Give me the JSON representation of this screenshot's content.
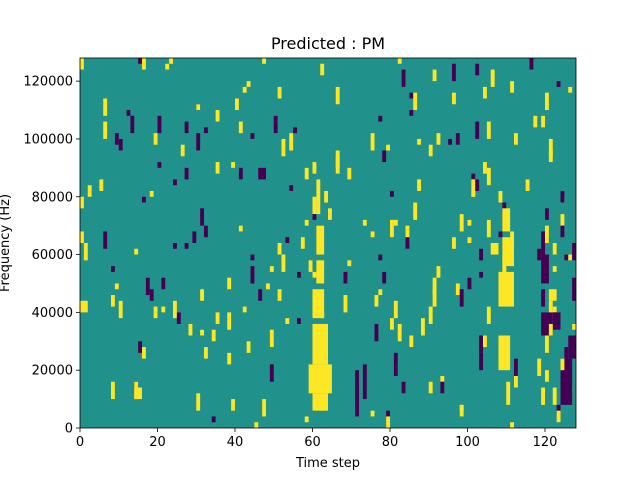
{
  "chart_data": {
    "type": "heatmap",
    "title": "Predicted : PM",
    "xlabel": "Time step",
    "ylabel": "Frequency (Hz)",
    "xlim": [
      0,
      128
    ],
    "ylim": [
      0,
      128000
    ],
    "xticks": [
      0,
      20,
      40,
      60,
      80,
      100,
      120
    ],
    "yticks": [
      0,
      20000,
      40000,
      60000,
      80000,
      100000,
      120000
    ],
    "grid": false,
    "legend": "none",
    "bins": {
      "time": 128,
      "frequency": 64
    },
    "colors": {
      "background": "#21918c",
      "high": "#fde725",
      "low": "#440154"
    },
    "high_events": [
      {
        "t": 59,
        "f": 12000,
        "len_t": 6,
        "len_f": 10000
      },
      {
        "t": 60,
        "f": 6000,
        "len_t": 4,
        "len_f": 6000
      },
      {
        "t": 60,
        "f": 22000,
        "len_t": 4,
        "len_f": 14000
      },
      {
        "t": 60,
        "f": 38000,
        "len_t": 3,
        "len_f": 10000
      },
      {
        "t": 61,
        "f": 50000,
        "len_t": 2,
        "len_f": 8000
      },
      {
        "t": 61,
        "f": 60000,
        "len_t": 2,
        "len_f": 10000
      },
      {
        "t": 61,
        "f": 74000,
        "len_t": 1,
        "len_f": 12000
      },
      {
        "t": 58,
        "f": 86000,
        "len_t": 1,
        "len_f": 4000
      },
      {
        "t": 63,
        "f": 78000,
        "len_t": 1,
        "len_f": 4000
      },
      {
        "t": 60,
        "f": 88000,
        "len_t": 1,
        "len_f": 4000
      },
      {
        "t": 108,
        "f": 20000,
        "len_t": 3,
        "len_f": 12000
      },
      {
        "t": 108,
        "f": 42000,
        "len_t": 4,
        "len_f": 12000
      },
      {
        "t": 109,
        "f": 56000,
        "len_t": 3,
        "len_f": 10000
      },
      {
        "t": 109,
        "f": 68000,
        "len_t": 2,
        "len_f": 8000
      },
      {
        "t": 106,
        "f": 60000,
        "len_t": 2,
        "len_f": 4000
      },
      {
        "t": 110,
        "f": 8000,
        "len_t": 1,
        "len_f": 8000
      },
      {
        "t": 105,
        "f": 36000,
        "len_t": 1,
        "len_f": 6000
      },
      {
        "t": 104,
        "f": 28000,
        "len_t": 1,
        "len_f": 4000
      },
      {
        "t": 28,
        "f": 32000,
        "len_t": 1,
        "len_f": 4000
      },
      {
        "t": 14,
        "f": 10000,
        "len_t": 2,
        "len_f": 4000
      },
      {
        "t": 0,
        "f": 40000,
        "len_t": 2,
        "len_f": 4000
      },
      {
        "t": 124,
        "f": 20000,
        "len_t": 1,
        "len_f": 4000
      },
      {
        "t": 120,
        "f": 16000,
        "len_t": 1,
        "len_f": 4000
      },
      {
        "t": 122,
        "f": 60000,
        "len_t": 1,
        "len_f": 4000
      },
      {
        "t": 120,
        "f": 64000,
        "len_t": 1,
        "len_f": 6000
      },
      {
        "t": 120,
        "f": 26000,
        "len_t": 1,
        "len_f": 6000
      },
      {
        "t": 121,
        "f": 32000,
        "len_t": 1,
        "len_f": 4000
      },
      {
        "t": 121,
        "f": 44000,
        "len_t": 2,
        "len_f": 4000
      },
      {
        "t": 123,
        "f": 2000,
        "len_t": 1,
        "len_f": 4000
      },
      {
        "t": 62,
        "f": 122000,
        "len_t": 1,
        "len_f": 4000
      },
      {
        "t": 64,
        "f": 72000,
        "len_t": 1,
        "len_f": 4000
      },
      {
        "t": 57,
        "f": 62000,
        "len_t": 1,
        "len_f": 4000
      }
    ],
    "low_events": [
      {
        "t": 124,
        "f": 8000,
        "len_t": 3,
        "len_f": 16000
      },
      {
        "t": 126,
        "f": 24000,
        "len_t": 2,
        "len_f": 8000
      },
      {
        "t": 119,
        "f": 32000,
        "len_t": 3,
        "len_f": 8000
      },
      {
        "t": 119,
        "f": 50000,
        "len_t": 2,
        "len_f": 10000
      },
      {
        "t": 119,
        "f": 60000,
        "len_t": 1,
        "len_f": 8000
      },
      {
        "t": 122,
        "f": 34000,
        "len_t": 2,
        "len_f": 6000
      },
      {
        "t": 71,
        "f": 4000,
        "len_t": 1,
        "len_f": 16000
      },
      {
        "t": 73,
        "f": 10000,
        "len_t": 1,
        "len_f": 12000
      },
      {
        "t": 127,
        "f": 44000,
        "len_t": 1,
        "len_f": 8000
      },
      {
        "t": 127,
        "f": 58000,
        "len_t": 1,
        "len_f": 6000
      },
      {
        "t": 124,
        "f": 66000,
        "len_t": 1,
        "len_f": 4000
      },
      {
        "t": 124,
        "f": 78000,
        "len_t": 1,
        "len_f": 4000
      },
      {
        "t": 46,
        "f": 86000,
        "len_t": 2,
        "len_f": 4000
      },
      {
        "t": 103,
        "f": 58000,
        "len_t": 1,
        "len_f": 4000
      },
      {
        "t": 84,
        "f": 62000,
        "len_t": 1,
        "len_f": 4000
      },
      {
        "t": 98,
        "f": 42000,
        "len_t": 1,
        "len_f": 6000
      },
      {
        "t": 68,
        "f": 50000,
        "len_t": 1,
        "len_f": 4000
      },
      {
        "t": 30,
        "f": 96000,
        "len_t": 1,
        "len_f": 6000
      },
      {
        "t": 81,
        "f": 18000,
        "len_t": 1,
        "len_f": 8000
      },
      {
        "t": 120,
        "f": 72000,
        "len_t": 1,
        "len_f": 4000
      }
    ]
  }
}
